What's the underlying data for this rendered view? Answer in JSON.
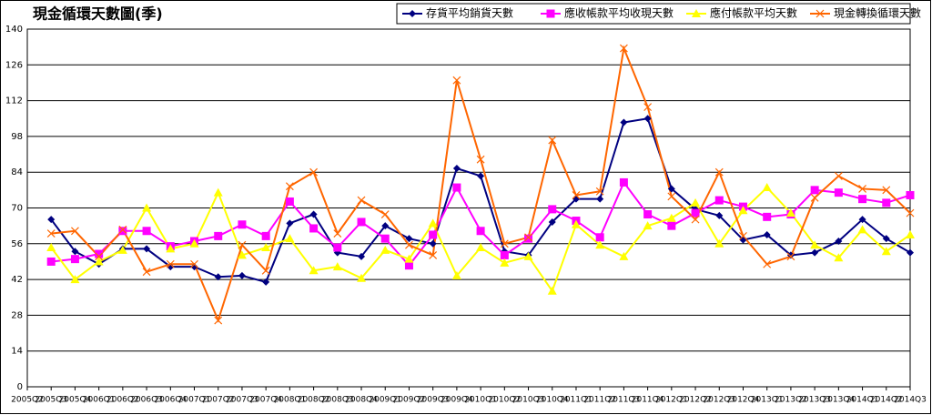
{
  "chart_data": {
    "type": "line",
    "title": "現金循環天數圖(季)",
    "categories": [
      "2005Q2",
      "2005Q3",
      "2005Q4",
      "2006Q1",
      "2006Q2",
      "2006Q3",
      "2006Q4",
      "2007Q1",
      "2007Q2",
      "2007Q3",
      "2007Q4",
      "2008Q1",
      "2008Q2",
      "2008Q3",
      "2008Q4",
      "2009Q1",
      "2009Q2",
      "2009Q3",
      "2009Q4",
      "2010Q1",
      "2010Q2",
      "2010Q3",
      "2010Q4",
      "2011Q1",
      "2011Q2",
      "2011Q3",
      "2011Q4",
      "2012Q1",
      "2012Q2",
      "2012Q3",
      "2012Q4",
      "2013Q1",
      "2013Q2",
      "2013Q3",
      "2013Q4",
      "2014Q1",
      "2014Q2",
      "2014Q3"
    ],
    "series": [
      {
        "name": "存貨平均銷貨天數",
        "color": "#000080",
        "marker": "diamond",
        "values": [
          null,
          65.5,
          53,
          48,
          54,
          54,
          47,
          47,
          43,
          43.5,
          41,
          64,
          67.5,
          52.5,
          51,
          63,
          58,
          56,
          85.5,
          82.5,
          53,
          51.5,
          64.5,
          73.5,
          73.5,
          103.5,
          105,
          77.5,
          69.5,
          67,
          57.5,
          59.5,
          51.5,
          52.5,
          57,
          65.5,
          58,
          52.5
        ]
      },
      {
        "name": "應收帳款平均收現天數",
        "color": "#ff00ff",
        "marker": "square",
        "values": [
          null,
          49,
          50,
          52,
          61,
          61,
          55,
          57,
          59,
          63.5,
          59,
          72.5,
          62,
          54.5,
          64.5,
          58,
          47.5,
          59.5,
          78,
          61,
          51.5,
          58,
          69.5,
          65,
          58.5,
          80,
          67.5,
          63,
          68,
          73,
          70.5,
          66.5,
          67.5,
          77,
          76,
          73.5,
          72,
          75
        ]
      },
      {
        "name": "應付帳款平均天數",
        "color": "#ffff00",
        "marker": "triangle",
        "values": [
          null,
          54.5,
          42,
          49,
          53.5,
          70,
          54,
          56,
          76,
          51.5,
          54.5,
          58,
          45.5,
          47,
          42.5,
          53.5,
          50,
          64,
          43.5,
          54.5,
          48.5,
          51,
          37.5,
          63.5,
          55.5,
          51,
          63,
          66,
          72,
          56,
          69,
          78,
          68,
          55.5,
          50.5,
          61.5,
          53,
          59.5
        ]
      },
      {
        "name": "現金轉換循環天數",
        "color": "#ff6600",
        "marker": "x",
        "values": [
          null,
          60,
          61,
          51,
          61.5,
          45,
          48,
          48,
          26,
          55.5,
          45.5,
          78.5,
          84,
          60,
          73,
          67.5,
          55.5,
          51.5,
          120,
          89,
          56,
          58.5,
          96.5,
          75,
          76.5,
          132.5,
          109.5,
          74.5,
          65.5,
          84,
          59,
          48,
          51,
          74,
          82.5,
          77.5,
          77,
          68
        ]
      }
    ],
    "ylim": [
      0,
      140
    ],
    "yticks": [
      0,
      14,
      28,
      42,
      56,
      70,
      84,
      98,
      112,
      126,
      140
    ],
    "grid": true,
    "legend": "top-right"
  }
}
